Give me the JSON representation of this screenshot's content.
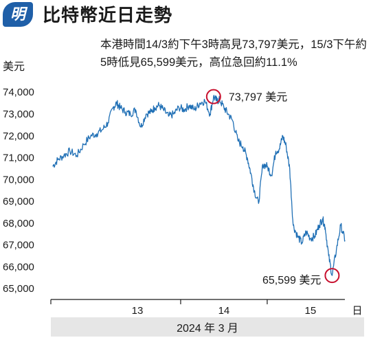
{
  "header": {
    "logo_text": "明",
    "title": "比特幣近日走勢",
    "subtitle": "本港時間14/3約下午3時高見73,797美元，15/3下午約5時低見65,599美元，高位急回約11.1%"
  },
  "chart_data": {
    "type": "line",
    "title": "比特幣近日走勢",
    "ylabel": "美元",
    "xlabel": "2024 年 3 月",
    "x_unit_label": "日",
    "ylim": [
      64500,
      74700
    ],
    "xlim": [
      12.0,
      15.62
    ],
    "y_ticks": [
      65000,
      66000,
      67000,
      68000,
      69000,
      70000,
      71000,
      72000,
      73000,
      74000
    ],
    "y_tick_labels": [
      "65,000",
      "66,000",
      "67,000",
      "68,000",
      "69,000",
      "70,000",
      "71,000",
      "72,000",
      "73,000",
      "74,000"
    ],
    "x_ticks": [
      13,
      14,
      15
    ],
    "x_tick_labels": [
      "13",
      "14",
      "15"
    ],
    "x_unit_text": "日",
    "line_color": "#1f6fb5",
    "marker_color": "#c8102e",
    "series": [
      {
        "x": [
          12.02,
          12.08,
          12.15,
          12.22,
          12.3,
          12.38,
          12.46,
          12.53,
          12.6,
          12.66,
          12.72,
          12.76,
          12.8,
          12.86,
          12.92,
          12.98,
          13.04,
          13.1,
          13.16,
          13.2,
          13.25,
          13.3,
          13.36,
          13.42,
          13.48,
          13.54,
          13.6,
          13.66,
          13.72,
          13.78,
          13.84,
          13.88,
          13.92,
          13.95,
          14.0,
          14.05,
          14.1,
          14.16,
          14.22,
          14.27,
          14.31,
          14.35,
          14.4,
          14.45,
          14.5,
          14.55,
          14.6,
          14.64,
          14.68,
          14.72,
          14.76,
          14.8,
          14.85,
          14.9,
          14.95,
          15.0,
          15.05,
          15.1,
          15.14,
          15.17,
          15.21,
          15.25,
          15.3,
          15.35,
          15.4
        ],
        "values": [
          70600,
          70900,
          71100,
          71300,
          71100,
          71600,
          72000,
          72100,
          72300,
          72600,
          73300,
          73500,
          73300,
          73100,
          73000,
          73200,
          72400,
          73000,
          73100,
          73300,
          73400,
          73200,
          72900,
          73000,
          73300,
          73200,
          73400,
          73200,
          73500,
          73600,
          73000,
          73797,
          73600,
          73650,
          73300,
          73000,
          72700,
          71800,
          71500,
          71000,
          70300,
          69500,
          68900,
          70700,
          70600,
          70200,
          71300,
          71400,
          72000,
          71500,
          70500,
          67900,
          67400,
          67100,
          67600,
          67300,
          67400,
          67900,
          68200,
          67800,
          66500,
          65599,
          66800,
          67900,
          67200
        ]
      }
    ],
    "annotations": [
      {
        "label": "73,797 美元",
        "x": 13.88,
        "y": 73797
      },
      {
        "label": "65,599 美元",
        "x": 15.25,
        "y": 65599
      }
    ]
  }
}
